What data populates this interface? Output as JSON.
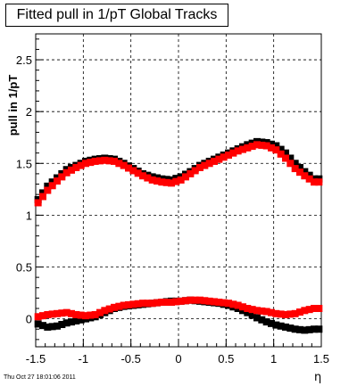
{
  "chart_data": {
    "type": "scatter",
    "title": "Fitted pull in 1/pT  Global Tracks",
    "xlabel": "η",
    "ylabel": "pull in 1/pT",
    "xlim": [
      -1.5,
      1.5
    ],
    "ylim": [
      -0.27,
      2.75
    ],
    "xticks": [
      "-1.5",
      "-1",
      "-0.5",
      "0",
      "0.5",
      "1",
      "1.5"
    ],
    "yticks": [
      "0",
      "0.5",
      "1",
      "1.5",
      "2",
      "2.5"
    ],
    "grid": true,
    "series": [
      {
        "color": "#000000",
        "marker": "square",
        "x": [
          -1.45,
          -1.35,
          -1.25,
          -1.15,
          -1.05,
          -0.95,
          -0.85,
          -0.75,
          -0.65,
          -0.55,
          -0.45,
          -0.35,
          -0.25,
          -0.15,
          -0.05,
          0.05,
          0.15,
          0.25,
          0.35,
          0.45,
          0.55,
          0.65,
          0.75,
          0.85,
          0.95,
          1.05,
          1.15,
          1.25,
          1.35,
          1.45
        ],
        "y": [
          1.15,
          1.28,
          1.36,
          1.44,
          1.48,
          1.52,
          1.54,
          1.55,
          1.54,
          1.5,
          1.45,
          1.4,
          1.37,
          1.35,
          1.34,
          1.37,
          1.42,
          1.48,
          1.52,
          1.56,
          1.6,
          1.64,
          1.68,
          1.71,
          1.7,
          1.67,
          1.6,
          1.5,
          1.42,
          1.35
        ]
      },
      {
        "color": "#ff0000",
        "marker": "square",
        "x": [
          -1.45,
          -1.35,
          -1.25,
          -1.15,
          -1.05,
          -0.95,
          -0.85,
          -0.75,
          -0.65,
          -0.55,
          -0.45,
          -0.35,
          -0.25,
          -0.15,
          -0.05,
          0.05,
          0.15,
          0.25,
          0.35,
          0.45,
          0.55,
          0.65,
          0.75,
          0.85,
          0.95,
          1.05,
          1.15,
          1.25,
          1.35,
          1.45
        ],
        "y": [
          1.12,
          1.24,
          1.33,
          1.41,
          1.46,
          1.5,
          1.52,
          1.53,
          1.52,
          1.48,
          1.43,
          1.38,
          1.34,
          1.32,
          1.31,
          1.34,
          1.4,
          1.46,
          1.5,
          1.54,
          1.58,
          1.62,
          1.65,
          1.68,
          1.67,
          1.63,
          1.55,
          1.45,
          1.38,
          1.32
        ]
      },
      {
        "color": "#000000",
        "marker": "square",
        "x": [
          -1.45,
          -1.35,
          -1.25,
          -1.15,
          -1.05,
          -0.95,
          -0.85,
          -0.75,
          -0.65,
          -0.55,
          -0.45,
          -0.35,
          -0.25,
          -0.15,
          -0.05,
          0.05,
          0.15,
          0.25,
          0.35,
          0.45,
          0.55,
          0.65,
          0.75,
          0.85,
          0.95,
          1.05,
          1.15,
          1.25,
          1.35,
          1.45
        ],
        "y": [
          -0.05,
          -0.08,
          -0.07,
          -0.04,
          -0.02,
          0.0,
          0.02,
          0.06,
          0.1,
          0.12,
          0.13,
          0.14,
          0.15,
          0.16,
          0.17,
          0.17,
          0.18,
          0.17,
          0.16,
          0.15,
          0.13,
          0.1,
          0.06,
          0.01,
          -0.03,
          -0.06,
          -0.08,
          -0.1,
          -0.11,
          -0.1
        ]
      },
      {
        "color": "#ff0000",
        "marker": "square",
        "x": [
          -1.45,
          -1.35,
          -1.25,
          -1.15,
          -1.05,
          -0.95,
          -0.85,
          -0.75,
          -0.65,
          -0.55,
          -0.45,
          -0.35,
          -0.25,
          -0.15,
          -0.05,
          0.05,
          0.15,
          0.25,
          0.35,
          0.45,
          0.55,
          0.65,
          0.75,
          0.85,
          0.95,
          1.05,
          1.15,
          1.25,
          1.35,
          1.45
        ],
        "y": [
          0.02,
          0.04,
          0.05,
          0.06,
          0.04,
          0.03,
          0.04,
          0.08,
          0.11,
          0.13,
          0.14,
          0.15,
          0.15,
          0.16,
          0.16,
          0.17,
          0.18,
          0.18,
          0.17,
          0.16,
          0.15,
          0.13,
          0.1,
          0.08,
          0.07,
          0.05,
          0.04,
          0.05,
          0.08,
          0.1
        ]
      }
    ]
  },
  "footer": {
    "timestamp": "Thu Oct 27 18:01:06 2011"
  }
}
